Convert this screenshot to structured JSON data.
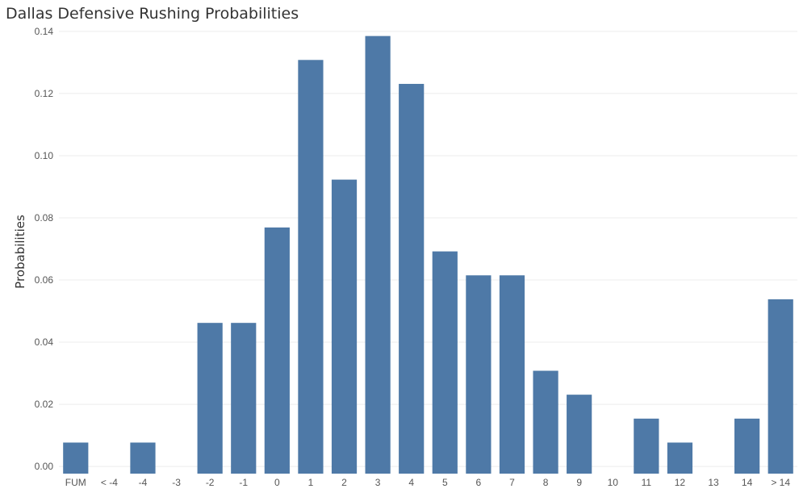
{
  "chart_data": {
    "type": "bar",
    "title": "Dallas Defensive Rushing Probabilities",
    "xlabel": "",
    "ylabel": "Probabilities",
    "categories": [
      "FUM",
      "< -4",
      "-4",
      "-3",
      "-2",
      "-1",
      "0",
      "1",
      "2",
      "3",
      "4",
      "5",
      "6",
      "7",
      "8",
      "9",
      "10",
      "11",
      "12",
      "13",
      "14",
      "> 14"
    ],
    "values": [
      0.0077,
      0,
      0.0077,
      0,
      0.0462,
      0.0462,
      0.0769,
      0.1308,
      0.0923,
      0.1385,
      0.1231,
      0.0692,
      0.0615,
      0.0615,
      0.0308,
      0.0231,
      0,
      0.0154,
      0.0077,
      0,
      0.0154,
      0.0538
    ],
    "ylim": [
      -0.0023,
      0.1423
    ],
    "yticks": [
      0.0,
      0.02,
      0.04,
      0.06,
      0.08,
      0.1,
      0.12,
      0.14
    ],
    "ytick_labels": [
      "0.00",
      "0.02",
      "0.04",
      "0.06",
      "0.08",
      "0.10",
      "0.12",
      "0.14"
    ],
    "grid": true,
    "colors": {
      "bar": "#4e79a7",
      "grid": "#ececec",
      "text": "#555555",
      "title": "#333333"
    }
  }
}
